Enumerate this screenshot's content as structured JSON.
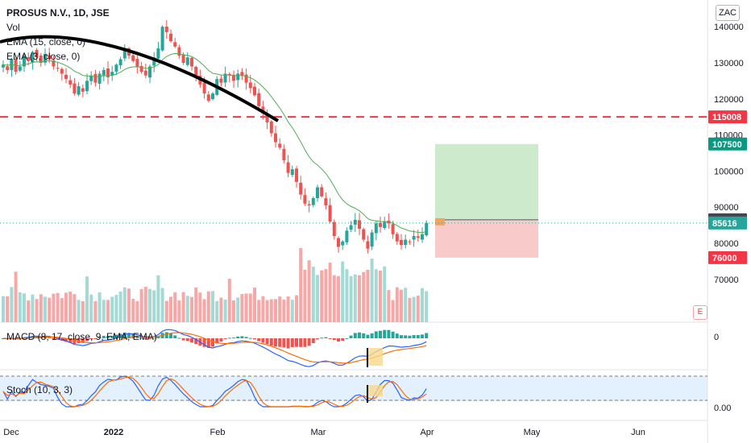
{
  "header": {
    "title": "PROSUS N.V., 1D, JSE",
    "indicators": [
      "Vol",
      "EMA (15, close, 0)",
      "EMA (3, close, 0)"
    ],
    "macd_label": "MACD (8, 17, close, 9, EMA, EMA)",
    "stoch_label": "Stoch (10, 3, 3)",
    "currency": "ZAC",
    "e_marker": "E"
  },
  "colors": {
    "up": "#26a69a",
    "down": "#ef5350",
    "ema15": "#4caf50",
    "macd": "#2962ff",
    "signal": "#ff6d00",
    "resistance": "#f23645",
    "target": "#089981",
    "arc": "#000000"
  },
  "chart_data": {
    "type": "candlestick",
    "symbol": "PROSUS N.V., 1D, JSE",
    "x_ticks": [
      "Dec",
      "2022",
      "Feb",
      "Mar",
      "Apr",
      "May",
      "Jun"
    ],
    "y_ticks": [
      70000,
      80000,
      90000,
      100000,
      110000,
      120000,
      130000,
      140000
    ],
    "ylim": [
      63000,
      148000
    ],
    "price_tags": {
      "resistance": "115008",
      "target": "107500",
      "entry": "86500",
      "last": "85616",
      "stop": "76000"
    },
    "levels": {
      "resistance": 115008,
      "target": 107500,
      "entry": 86500,
      "last": 85616,
      "stop": 76000
    },
    "closes": [
      129500,
      128000,
      131000,
      127500,
      129000,
      132000,
      130500,
      133000,
      131500,
      130000,
      132500,
      131000,
      129000,
      128500,
      127000,
      125500,
      124000,
      121500,
      123500,
      122000,
      125000,
      126500,
      124500,
      127000,
      128000,
      126000,
      127500,
      129500,
      131000,
      133500,
      132000,
      130500,
      129000,
      127500,
      126500,
      129000,
      131500,
      134000,
      140000,
      138500,
      136000,
      134500,
      132000,
      130000,
      131500,
      129000,
      126500,
      124000,
      121500,
      119500,
      121500,
      125500,
      124500,
      127000,
      126500,
      125000,
      127000,
      126500,
      124500,
      123000,
      121000,
      118000,
      116000,
      113500,
      110500,
      108000,
      106500,
      103000,
      99500,
      100500,
      97000,
      93500,
      91000,
      90500,
      92500,
      95500,
      93000,
      90500,
      86000,
      82000,
      79000,
      80500,
      83500,
      85000,
      86500,
      84000,
      81000,
      78500,
      83000,
      85500,
      84500,
      86000,
      85500,
      82500,
      80500,
      79500,
      81000,
      80500,
      82000,
      81500,
      82500,
      85616
    ],
    "stoch_levels": [
      80,
      20
    ],
    "macd_zero": "0",
    "stoch_tick": "0.00"
  }
}
